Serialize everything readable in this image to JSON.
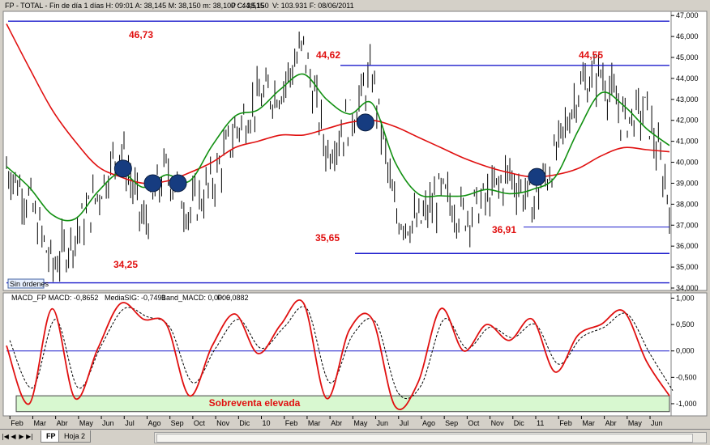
{
  "window": {
    "header": "FP - TOTAL - Fin de día 1 días  H: 09:01  A: 38,145  M: 38,150  m: 38,100  C: 38,150",
    "header_p": "P : 44,515",
    "header_tail": "V: 103.931  F: 08/06/2011"
  },
  "sin_ordenes": "Sin órdenes",
  "colors": {
    "price": "#000000",
    "ma_long": "#e01010",
    "ma_short": "#119011",
    "levels": "#1c1ccc",
    "macd": "#e01010",
    "signal": "#000000",
    "band_zone": "#d8f8d0",
    "circles": "#163c80",
    "annotation": "#e01010"
  },
  "tabs": {
    "active": "FP",
    "other": "Hoja 2",
    "nav": [
      "|◀",
      "◀",
      "▶",
      "▶|"
    ]
  },
  "chart_data": [
    {
      "type": "line",
      "panel": "price",
      "y_ticks": [
        "47,000",
        "46,000",
        "45,000",
        "44,000",
        "43,000",
        "42,000",
        "41,000",
        "40,000",
        "39,000",
        "38,000",
        "37,000",
        "36,000",
        "35,000",
        "34,000"
      ],
      "ylim": [
        34,
        47.2
      ],
      "x_labels": [
        "Feb",
        "Mar",
        "Abr",
        "May",
        "Jun",
        "Jul",
        "Ago",
        "Sep",
        "Oct",
        "Nov",
        "Dic",
        "10",
        "Feb",
        "Mar",
        "Abr",
        "May",
        "Jun",
        "Jul",
        "Ago",
        "Sep",
        "Oct",
        "Nov",
        "Dic",
        "11",
        "Feb",
        "Mar",
        "Abr",
        "May",
        "Jun"
      ],
      "x": [
        0,
        1,
        2,
        3,
        4,
        5,
        6,
        7,
        8,
        9,
        10,
        11,
        12,
        13,
        14,
        15,
        16,
        17,
        18,
        19,
        20,
        21,
        22,
        23,
        24,
        25,
        26,
        27,
        28,
        29
      ],
      "xlim": [
        0,
        29
      ],
      "series": [
        {
          "role": "price",
          "values": [
            39.8,
            38.2,
            35.0,
            36.5,
            38.5,
            40.8,
            37.0,
            39.7,
            37.6,
            39.0,
            41.5,
            43.0,
            43.5,
            45.5,
            40.5,
            42.0,
            44.2,
            37.5,
            37.0,
            38.5,
            37.5,
            38.2,
            39.5,
            38.0,
            40.2,
            43.5,
            44.3,
            42.0,
            42.5,
            38.2
          ]
        },
        {
          "role": "ma_long",
          "values": [
            46.6,
            44.5,
            42.5,
            41.0,
            39.8,
            39.3,
            39.0,
            39.1,
            39.5,
            40.0,
            40.7,
            41.0,
            41.3,
            41.3,
            41.6,
            41.9,
            42.0,
            41.7,
            41.2,
            40.7,
            40.2,
            39.8,
            39.5,
            39.3,
            39.4,
            39.7,
            40.3,
            40.7,
            40.6,
            40.5
          ]
        },
        {
          "role": "ma_short",
          "values": [
            39.8,
            38.8,
            37.5,
            37.3,
            38.6,
            39.5,
            38.8,
            39.4,
            39.1,
            40.8,
            42.2,
            42.5,
            43.5,
            44.2,
            43.0,
            42.3,
            42.8,
            40.0,
            38.5,
            38.4,
            38.4,
            38.7,
            38.5,
            38.7,
            39.3,
            41.5,
            43.3,
            42.7,
            41.6,
            40.8
          ]
        }
      ],
      "levels": [
        46.73,
        44.62,
        35.65,
        36.91,
        34.25
      ],
      "annotations": [
        "46,73",
        "44,62",
        "44,55",
        "35,65",
        "36,91",
        "34,25"
      ],
      "crossovers": [
        [
          5.1,
          39.7
        ],
        [
          6.4,
          39.0
        ],
        [
          7.5,
          39.0
        ],
        [
          15.7,
          41.9
        ],
        [
          23.2,
          39.3
        ]
      ]
    },
    {
      "type": "line",
      "panel": "macd",
      "legend_macd": "MACD_FP  MACD: -0,8652",
      "legend_sig": "MediaSIG: -0,7491",
      "legend_band": "Band_MACD: 0,0000",
      "legend_p": "P: 6,0882",
      "y_ticks": [
        "1,000",
        "0,500",
        "0,000",
        "-0,500",
        "-1,000"
      ],
      "ylim": [
        -1.2,
        1.1
      ],
      "band_label": "Sobreventa elevada",
      "band_range": [
        -1.15,
        -0.85
      ],
      "x": [
        0,
        1,
        2,
        3,
        4,
        5,
        6,
        7,
        8,
        9,
        10,
        11,
        12,
        13,
        14,
        15,
        16,
        17,
        18,
        19,
        20,
        21,
        22,
        23,
        24,
        25,
        26,
        27,
        28,
        29
      ],
      "series": [
        {
          "role": "macd",
          "values": [
            0.1,
            -1.0,
            0.8,
            -0.9,
            0.05,
            0.9,
            0.6,
            0.5,
            -0.85,
            0.1,
            0.7,
            -0.05,
            0.5,
            0.9,
            -0.9,
            0.4,
            0.6,
            -1.05,
            -0.6,
            0.8,
            0.0,
            0.5,
            0.2,
            0.6,
            -0.4,
            0.3,
            0.5,
            0.75,
            -0.2,
            -0.85
          ]
        },
        {
          "role": "signal",
          "values": [
            0.2,
            -0.7,
            0.6,
            -0.7,
            0.1,
            0.8,
            0.65,
            0.45,
            -0.6,
            0.05,
            0.6,
            0.05,
            0.45,
            0.8,
            -0.6,
            0.3,
            0.55,
            -0.8,
            -0.65,
            0.6,
            0.05,
            0.45,
            0.25,
            0.5,
            -0.25,
            0.25,
            0.45,
            0.7,
            -0.05,
            -0.75
          ]
        }
      ]
    }
  ]
}
